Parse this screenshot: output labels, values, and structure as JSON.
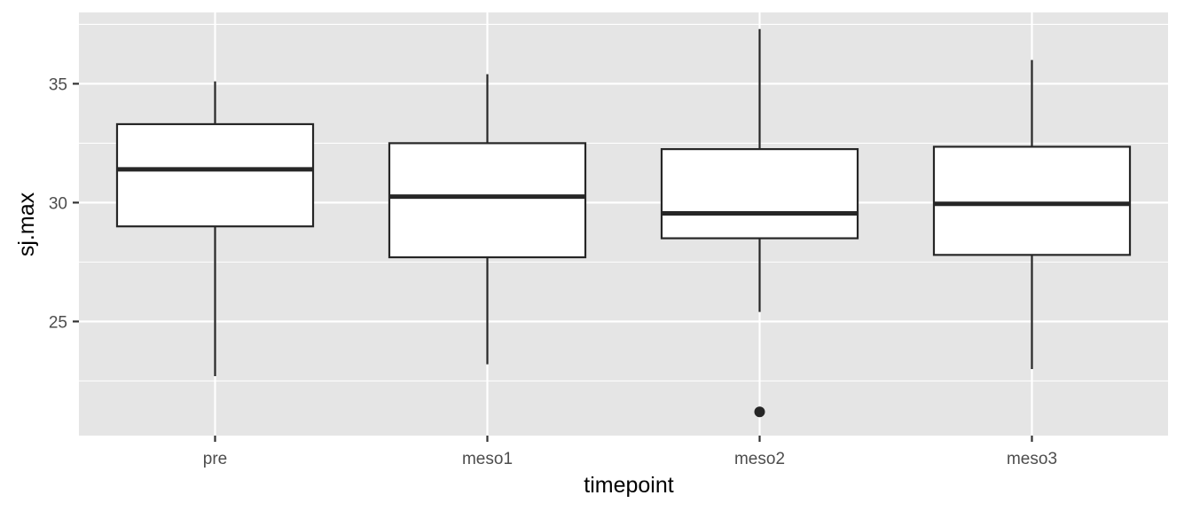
{
  "chart_data": {
    "type": "boxplot",
    "xlabel": "timepoint",
    "ylabel": "sj.max",
    "categories": [
      "pre",
      "meso1",
      "meso2",
      "meso3"
    ],
    "ylim": [
      20.2,
      38.0
    ],
    "yticks": [
      25,
      30,
      35
    ],
    "grid": true,
    "legend": "none",
    "boxes": [
      {
        "category": "pre",
        "whisker_low": 22.7,
        "q1": 29.0,
        "median": 31.4,
        "q3": 33.3,
        "whisker_high": 35.1,
        "outliers": []
      },
      {
        "category": "meso1",
        "whisker_low": 23.2,
        "q1": 27.7,
        "median": 30.25,
        "q3": 32.5,
        "whisker_high": 35.4,
        "outliers": []
      },
      {
        "category": "meso2",
        "whisker_low": 25.4,
        "q1": 28.5,
        "median": 29.55,
        "q3": 32.25,
        "whisker_high": 37.3,
        "outliers": [
          21.2
        ]
      },
      {
        "category": "meso3",
        "whisker_low": 23.0,
        "q1": 27.8,
        "median": 29.95,
        "q3": 32.35,
        "whisker_high": 36.0,
        "outliers": []
      }
    ],
    "colors": {
      "panel_bg": "#e5e5e5",
      "grid": "#ffffff",
      "box_fill": "#ffffff",
      "box_line": "#262626",
      "tick_text": "#4d4d4d",
      "axis_title": "#000000"
    }
  }
}
